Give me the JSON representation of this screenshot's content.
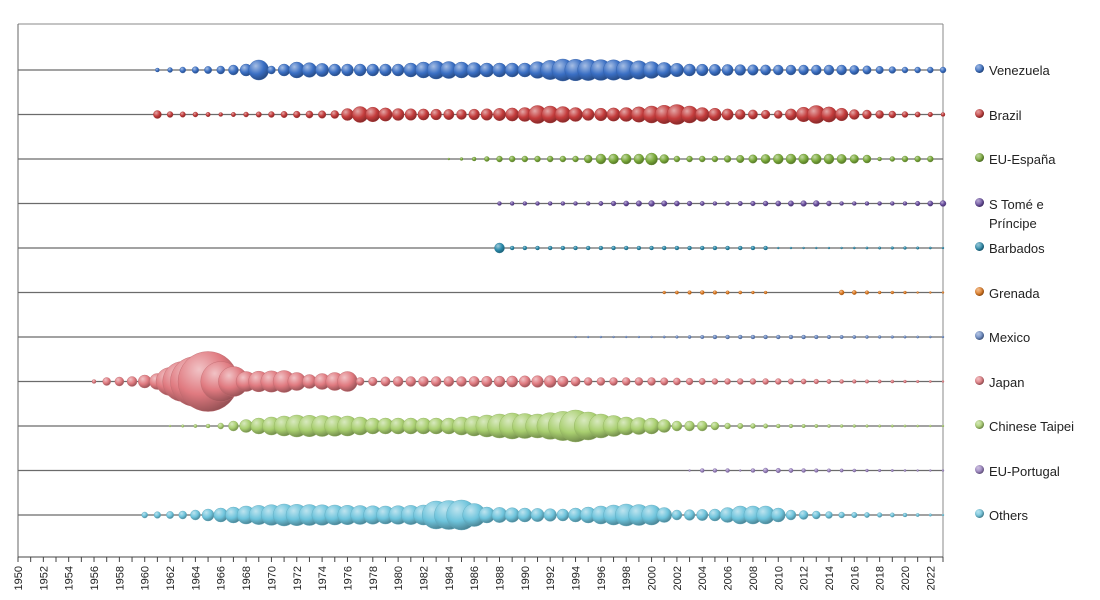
{
  "chart_data": {
    "type": "scatter",
    "xlim": [
      1950,
      2023
    ],
    "x_tick_labels": [
      "1950",
      "1952",
      "1954",
      "1956",
      "1958",
      "1960",
      "1962",
      "1964",
      "1966",
      "1968",
      "1970",
      "1972",
      "1974",
      "1976",
      "1978",
      "1980",
      "1982",
      "1984",
      "1986",
      "1988",
      "1990",
      "1992",
      "1994",
      "1996",
      "1998",
      "2000",
      "2002",
      "2004",
      "2006",
      "2008",
      "2010",
      "2012",
      "2014",
      "2016",
      "2018",
      "2020",
      "2022"
    ],
    "legend_position": "right",
    "series": [
      {
        "name": "Venezuela",
        "color": "#3a6fc4",
        "size_profile": [
          [
            1961,
            2
          ],
          [
            1963,
            3
          ],
          [
            1966,
            4
          ],
          [
            1968,
            6
          ],
          [
            1969,
            10
          ],
          [
            1970,
            4
          ],
          [
            1972,
            8
          ],
          [
            1975,
            6
          ],
          [
            1980,
            6
          ],
          [
            1983,
            9
          ],
          [
            1987,
            7
          ],
          [
            1990,
            7
          ],
          [
            1993,
            11
          ],
          [
            1998,
            10
          ],
          [
            2003,
            6
          ],
          [
            2010,
            5
          ],
          [
            2015,
            5
          ],
          [
            2020,
            3
          ],
          [
            2023,
            3
          ]
        ]
      },
      {
        "name": "Brazil",
        "color": "#c43c3c",
        "size_profile": [
          [
            1961,
            4
          ],
          [
            1962,
            3
          ],
          [
            1966,
            2
          ],
          [
            1970,
            3
          ],
          [
            1975,
            4
          ],
          [
            1977,
            8
          ],
          [
            1980,
            6
          ],
          [
            1985,
            5
          ],
          [
            1990,
            7
          ],
          [
            1991,
            9
          ],
          [
            1993,
            8
          ],
          [
            1995,
            6
          ],
          [
            1998,
            7
          ],
          [
            2002,
            10
          ],
          [
            2004,
            7
          ],
          [
            2007,
            5
          ],
          [
            2010,
            4
          ],
          [
            2013,
            9
          ],
          [
            2016,
            5
          ],
          [
            2020,
            3
          ],
          [
            2023,
            2
          ]
        ]
      },
      {
        "name": "EU-España",
        "color": "#7aaa3a",
        "size_profile": [
          [
            1984,
            1
          ],
          [
            1988,
            3
          ],
          [
            1990,
            3
          ],
          [
            1994,
            3
          ],
          [
            1996,
            5
          ],
          [
            1999,
            5
          ],
          [
            2000,
            6
          ],
          [
            2002,
            3
          ],
          [
            2005,
            3
          ],
          [
            2010,
            5
          ],
          [
            2014,
            5
          ],
          [
            2017,
            4
          ],
          [
            2018,
            2
          ],
          [
            2020,
            3
          ],
          [
            2022,
            3
          ]
        ]
      },
      {
        "name": "S Tomé e Príncipe",
        "color": "#6a4ea0",
        "size_profile": [
          [
            1988,
            2
          ],
          [
            1995,
            2
          ],
          [
            2000,
            3
          ],
          [
            2005,
            2
          ],
          [
            2013,
            3
          ],
          [
            2015,
            2
          ],
          [
            2020,
            2
          ],
          [
            2023,
            3
          ]
        ]
      },
      {
        "name": "Barbados",
        "color": "#2a8aab",
        "size_profile": [
          [
            1988,
            5
          ],
          [
            1989,
            2
          ],
          [
            1995,
            2
          ],
          [
            2000,
            2
          ],
          [
            2005,
            2
          ],
          [
            2009,
            2
          ],
          [
            2010,
            1
          ],
          [
            2015,
            1
          ],
          [
            2020,
            1.5
          ],
          [
            2023,
            1
          ]
        ]
      },
      {
        "name": "Grenada",
        "color": "#e07a20",
        "size_profile": [
          [
            2001,
            1.5
          ],
          [
            2004,
            2
          ],
          [
            2008,
            1.5
          ],
          [
            2009,
            1.5
          ],
          [
            2010,
            0
          ],
          [
            2014,
            0
          ],
          [
            2015,
            2.5
          ],
          [
            2018,
            1.5
          ],
          [
            2020,
            1.5
          ],
          [
            2021,
            1
          ],
          [
            2023,
            1
          ]
        ]
      },
      {
        "name": "Mexico",
        "color": "#6a8ac4",
        "size_profile": [
          [
            1994,
            1
          ],
          [
            2000,
            1
          ],
          [
            2005,
            2
          ],
          [
            2012,
            2
          ],
          [
            2018,
            1.5
          ],
          [
            2023,
            1
          ]
        ]
      },
      {
        "name": "Japan",
        "color": "#e07a80",
        "size_profile": [
          [
            1956,
            2
          ],
          [
            1957,
            4
          ],
          [
            1959,
            5
          ],
          [
            1961,
            8
          ],
          [
            1963,
            20
          ],
          [
            1965,
            30
          ],
          [
            1966,
            20
          ],
          [
            1968,
            10
          ],
          [
            1971,
            11
          ],
          [
            1973,
            7
          ],
          [
            1976,
            10
          ],
          [
            1977,
            4
          ],
          [
            1980,
            5
          ],
          [
            1985,
            5
          ],
          [
            1992,
            6
          ],
          [
            1995,
            4
          ],
          [
            2000,
            4
          ],
          [
            2005,
            3
          ],
          [
            2010,
            3
          ],
          [
            2015,
            2
          ],
          [
            2020,
            1.5
          ],
          [
            2023,
            1
          ]
        ]
      },
      {
        "name": "Chinese Taipei",
        "color": "#a9cf70",
        "size_profile": [
          [
            1962,
            1
          ],
          [
            1965,
            2
          ],
          [
            1966,
            3
          ],
          [
            1967,
            5
          ],
          [
            1969,
            8
          ],
          [
            1972,
            11
          ],
          [
            1976,
            10
          ],
          [
            1978,
            8
          ],
          [
            1982,
            8
          ],
          [
            1984,
            8
          ],
          [
            1987,
            11
          ],
          [
            1989,
            13
          ],
          [
            1991,
            12
          ],
          [
            1994,
            16
          ],
          [
            1996,
            12
          ],
          [
            1998,
            9
          ],
          [
            2000,
            8
          ],
          [
            2002,
            5
          ],
          [
            2004,
            5
          ],
          [
            2006,
            3
          ],
          [
            2010,
            2
          ],
          [
            2015,
            1.5
          ],
          [
            2023,
            1
          ]
        ]
      },
      {
        "name": "EU-Portugal",
        "color": "#9a82c0",
        "size_profile": [
          [
            2003,
            1
          ],
          [
            2004,
            2
          ],
          [
            2006,
            2
          ],
          [
            2007,
            1
          ],
          [
            2008,
            2
          ],
          [
            2009,
            2.5
          ],
          [
            2012,
            2
          ],
          [
            2017,
            1.5
          ],
          [
            2021,
            1
          ],
          [
            2023,
            1
          ]
        ]
      },
      {
        "name": "Others",
        "color": "#6ec4dc",
        "size_profile": [
          [
            1960,
            3
          ],
          [
            1963,
            4
          ],
          [
            1966,
            7
          ],
          [
            1968,
            9
          ],
          [
            1971,
            11
          ],
          [
            1975,
            10
          ],
          [
            1979,
            9
          ],
          [
            1982,
            10
          ],
          [
            1983,
            14
          ],
          [
            1985,
            15
          ],
          [
            1987,
            8
          ],
          [
            1990,
            7
          ],
          [
            1993,
            6
          ],
          [
            1996,
            9
          ],
          [
            1998,
            11
          ],
          [
            2000,
            10
          ],
          [
            2002,
            5
          ],
          [
            2005,
            6
          ],
          [
            2007,
            9
          ],
          [
            2009,
            9
          ],
          [
            2011,
            5
          ],
          [
            2015,
            3
          ],
          [
            2020,
            2
          ],
          [
            2023,
            1
          ]
        ]
      }
    ]
  }
}
